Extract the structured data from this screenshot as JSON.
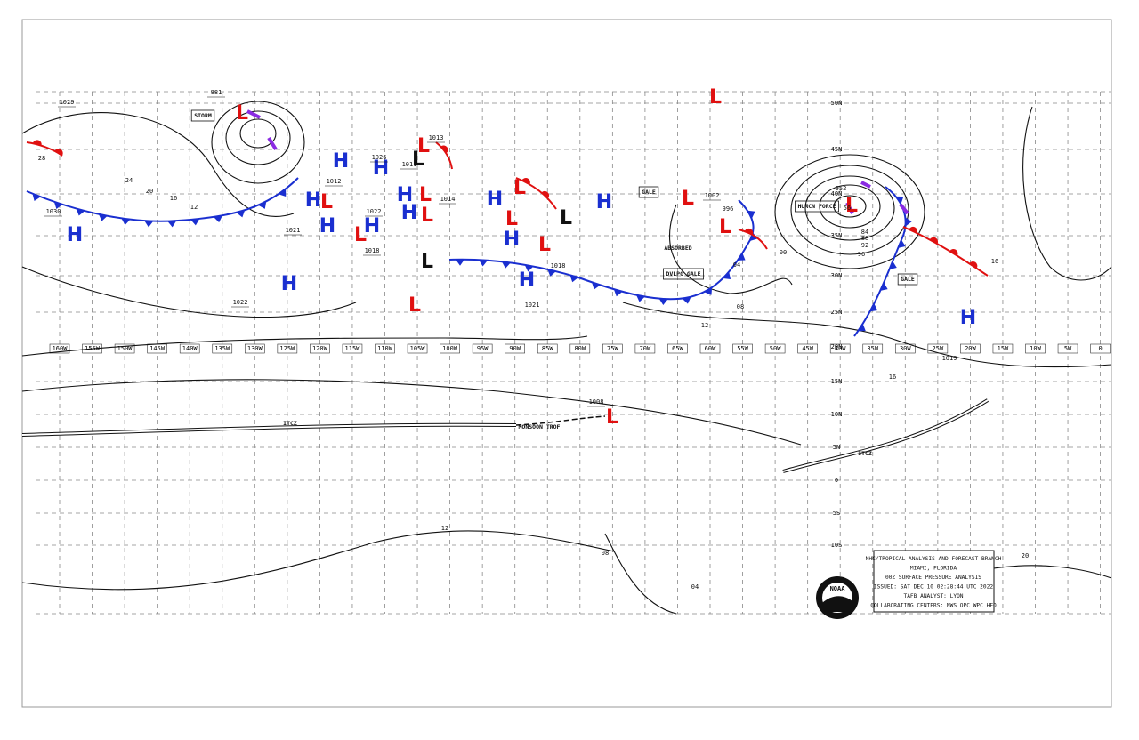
{
  "longitudes": [
    "160W",
    "155W",
    "150W",
    "145W",
    "140W",
    "135W",
    "130W",
    "125W",
    "120W",
    "115W",
    "110W",
    "105W",
    "100W",
    "95W",
    "90W",
    "85W",
    "80W",
    "75W",
    "70W",
    "65W",
    "60W",
    "55W",
    "50W",
    "45W",
    "40W",
    "35W",
    "30W",
    "25W",
    "20W",
    "15W",
    "10W",
    "5W",
    "0"
  ],
  "latitudes": [
    "50N",
    "45N",
    "40N",
    "35N",
    "30N",
    "25N",
    "20N",
    "15N",
    "10N",
    "5N",
    "0",
    "5S",
    "10S"
  ],
  "pressure_centers": [
    {
      "symbol": "H"
    },
    {
      "symbol": "H"
    },
    {
      "symbol": "H"
    },
    {
      "symbol": "H"
    },
    {
      "symbol": "H"
    },
    {
      "symbol": "H"
    },
    {
      "symbol": "H"
    },
    {
      "symbol": "H"
    },
    {
      "symbol": "H"
    },
    {
      "symbol": "H"
    },
    {
      "symbol": "H"
    },
    {
      "symbol": "H"
    },
    {
      "symbol": "H"
    },
    {
      "symbol": "H"
    },
    {
      "symbol": "L"
    },
    {
      "symbol": "L"
    },
    {
      "symbol": "L"
    },
    {
      "symbol": "L"
    },
    {
      "symbol": "L"
    },
    {
      "symbol": "L"
    },
    {
      "symbol": "L"
    },
    {
      "symbol": "L"
    },
    {
      "symbol": "L"
    },
    {
      "symbol": "L"
    },
    {
      "symbol": "L"
    },
    {
      "symbol": "L"
    },
    {
      "symbol": "L"
    },
    {
      "symbol": "L"
    },
    {
      "symbol": "L"
    },
    {
      "symbol": "L"
    },
    {
      "symbol": "L"
    },
    {
      "symbol": "L"
    }
  ],
  "isobar_labels": [
    "1029",
    "1030",
    "1022",
    "1021",
    "1012",
    "1026",
    "1022",
    "1018",
    "1002",
    "996",
    "952",
    "1008",
    "1019",
    "1021",
    "1018",
    "1013",
    "1011",
    "1014",
    "981",
    "28",
    "24",
    "20",
    "16",
    "12",
    "08",
    "04",
    "00",
    "12",
    "16",
    "20",
    "04",
    "08",
    "12",
    "16",
    "56",
    "84",
    "88",
    "92",
    "96"
  ],
  "feature_labels": [
    "STORM",
    "GALE",
    "ABSORBED",
    "DVLPG GALE",
    "HURCN FORCE",
    "GALE",
    "ITCZ",
    "MONSOON TROF",
    "ITCZ"
  ],
  "info_box": [
    "NHC/TROPICAL ANALYSIS AND FORECAST BRANCH",
    "MIAMI, FLORIDA",
    "00Z SURFACE PRESSURE ANALYSIS",
    "ISSUED: SAT DEC 10 02:28:44 UTC 2022",
    "TAFB ANALYST: LYON",
    "COLLABORATING CENTERS: NWS OPC WPC HFO"
  ],
  "logo": "NOAA"
}
